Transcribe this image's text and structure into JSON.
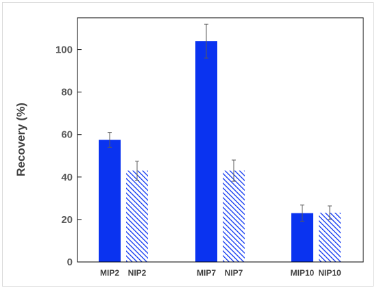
{
  "chart_data": {
    "type": "bar",
    "title": "",
    "xlabel": "",
    "ylabel": "Recovery (%)",
    "ylim": [
      0,
      115
    ],
    "yticks": [
      0,
      20,
      40,
      60,
      80,
      100
    ],
    "grid": false,
    "legend": "none",
    "categories": [
      "MIP2",
      "NIP2",
      "MIP7",
      "NIP7",
      "MIP10",
      "NIP10"
    ],
    "values": [
      57.5,
      43,
      104,
      43,
      23,
      23.2
    ],
    "errors": [
      3.5,
      4.5,
      8,
      5,
      3.8,
      3.2
    ],
    "styles": [
      "solid",
      "hatched",
      "solid",
      "hatched",
      "solid",
      "hatched"
    ],
    "colors": {
      "bar": "#0a33f0",
      "error_bar": "#595959",
      "axis": "#000000"
    }
  }
}
